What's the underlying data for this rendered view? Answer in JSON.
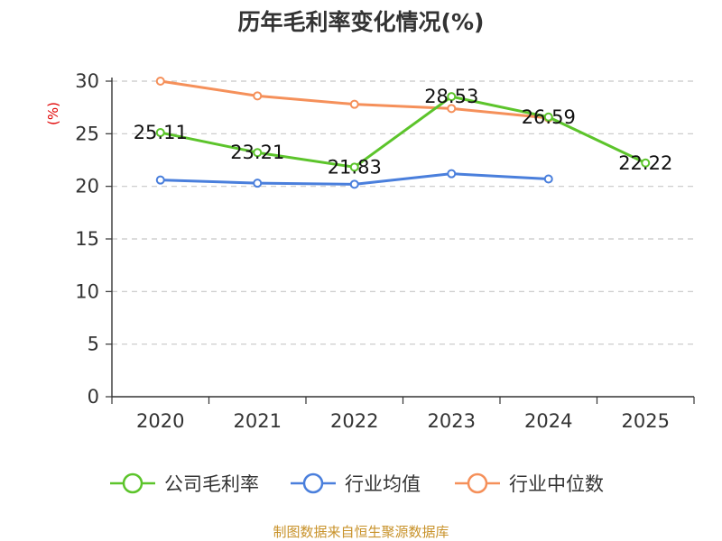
{
  "chart_data": {
    "type": "line",
    "title": "历年毛利率变化情况(%)",
    "unit_label": "(%)",
    "categories": [
      "2020",
      "2021",
      "2022",
      "2023",
      "2024",
      "2025"
    ],
    "y_ticks": [
      "0",
      "5",
      "10",
      "15",
      "20",
      "25",
      "30"
    ],
    "ylim": [
      0,
      30
    ],
    "grid": true,
    "legend_position": "bottom",
    "series": [
      {
        "name": "公司毛利率",
        "color": "#5cc42b",
        "values": [
          25.11,
          23.21,
          21.83,
          28.53,
          26.59,
          22.22
        ],
        "labels": [
          "25.11",
          "23.21",
          "21.83",
          "28.53",
          "26.59",
          "22.22"
        ]
      },
      {
        "name": "行业均值",
        "color": "#4a7fdc",
        "values": [
          20.6,
          20.3,
          20.2,
          21.2,
          20.7,
          null
        ]
      },
      {
        "name": "行业中位数",
        "color": "#f5905a",
        "values": [
          30.0,
          28.6,
          27.8,
          27.4,
          26.5,
          null
        ]
      }
    ],
    "source": "制图数据来自恒生聚源数据库"
  }
}
